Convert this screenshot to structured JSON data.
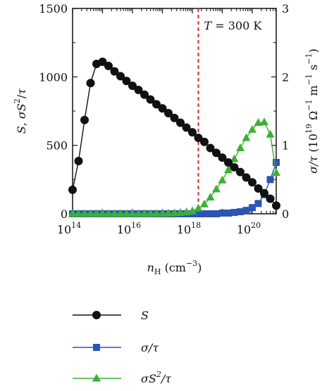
{
  "chart_data": {
    "type": "line",
    "xlabel": "n_H (cm⁻³)",
    "xlabel_parts": {
      "var": "n",
      "sub": "H",
      "unit": " (cm",
      "exp": "−3",
      "close": ")"
    },
    "ylabel_left": "S, σS²/τ",
    "ylabel_right": "σ/τ (10¹⁹ Ω⁻¹ m⁻¹ s⁻¹)",
    "xscale": "log",
    "xlim_log10": [
      14,
      20.8
    ],
    "ylim_left": [
      0,
      1500
    ],
    "ylim_right": [
      0,
      3
    ],
    "x_ticks": [
      {
        "log": 14,
        "base": "10",
        "exp": "14"
      },
      {
        "log": 16,
        "base": "10",
        "exp": "16"
      },
      {
        "log": 18,
        "base": "10",
        "exp": "18"
      },
      {
        "log": 20,
        "base": "10",
        "exp": "20"
      }
    ],
    "y_left_ticks": [
      "0",
      "500",
      "1000",
      "1500"
    ],
    "y_right_ticks": [
      "0",
      "1",
      "2",
      "3"
    ],
    "annotation": {
      "text": "T = 300 K",
      "text_var": "T",
      "text_rest": " = 300 K",
      "x_log10": 18.2,
      "line_color": "#d9262b"
    },
    "series": [
      {
        "name": "S",
        "axis": "left",
        "marker": "circle",
        "color": "#111111",
        "x_log10": [
          14.0,
          14.2,
          14.4,
          14.6,
          14.8,
          15.0,
          15.2,
          15.4,
          15.6,
          15.8,
          16.0,
          16.2,
          16.4,
          16.6,
          16.8,
          17.0,
          17.2,
          17.4,
          17.6,
          17.8,
          18.0,
          18.2,
          18.4,
          18.6,
          18.8,
          19.0,
          19.2,
          19.4,
          19.6,
          19.8,
          20.0,
          20.2,
          20.4,
          20.6,
          20.8
        ],
        "values": [
          175,
          385,
          685,
          955,
          1095,
          1110,
          1080,
          1040,
          1005,
          970,
          935,
          905,
          870,
          835,
          800,
          770,
          735,
          700,
          665,
          630,
          595,
          555,
          525,
          480,
          445,
          410,
          375,
          340,
          305,
          265,
          230,
          185,
          150,
          110,
          60
        ]
      },
      {
        "name": "σ/τ",
        "axis": "right",
        "marker": "square",
        "color": "#2a55b3",
        "x_log10": [
          14.0,
          14.2,
          14.4,
          14.6,
          14.8,
          15.0,
          15.2,
          15.4,
          15.6,
          15.8,
          16.0,
          16.2,
          16.4,
          16.6,
          16.8,
          17.0,
          17.2,
          17.4,
          17.6,
          17.8,
          18.0,
          18.2,
          18.4,
          18.6,
          18.8,
          19.0,
          19.2,
          19.4,
          19.6,
          19.8,
          20.0,
          20.2,
          20.4,
          20.6,
          20.8
        ],
        "values": [
          0,
          0,
          0,
          0,
          0,
          0,
          0,
          0,
          0,
          0,
          0,
          0,
          0,
          0,
          0,
          0,
          0,
          0,
          0,
          0,
          0,
          0,
          0,
          0,
          0,
          0.01,
          0.01,
          0.02,
          0.03,
          0.05,
          0.09,
          0.15,
          0.28,
          0.5,
          0.75
        ]
      },
      {
        "name": "σS²/τ",
        "axis": "left",
        "marker": "triangle",
        "color": "#3cb035",
        "x_log10": [
          14.0,
          14.2,
          14.4,
          14.6,
          14.8,
          15.0,
          15.2,
          15.4,
          15.6,
          15.8,
          16.0,
          16.2,
          16.4,
          16.6,
          16.8,
          17.0,
          17.2,
          17.4,
          17.6,
          17.8,
          18.0,
          18.2,
          18.4,
          18.6,
          18.8,
          19.0,
          19.2,
          19.4,
          19.6,
          19.8,
          20.0,
          20.2,
          20.4,
          20.6,
          20.8
        ],
        "values": [
          0,
          0,
          0,
          0,
          0,
          0,
          0,
          0,
          0,
          0,
          0,
          0,
          0,
          1,
          1,
          2,
          3,
          5,
          8,
          12,
          20,
          40,
          70,
          120,
          180,
          245,
          320,
          400,
          480,
          555,
          615,
          665,
          670,
          580,
          300
        ]
      }
    ],
    "legend": [
      {
        "label": "S",
        "var": "S",
        "rest": "",
        "sup": "",
        "tail": ""
      },
      {
        "label": "σ/τ",
        "var": "σ/τ",
        "rest": "",
        "sup": "",
        "tail": ""
      },
      {
        "label": "σS²/τ",
        "var": "σS",
        "rest": "",
        "sup": "2",
        "tail": "/τ"
      }
    ]
  }
}
